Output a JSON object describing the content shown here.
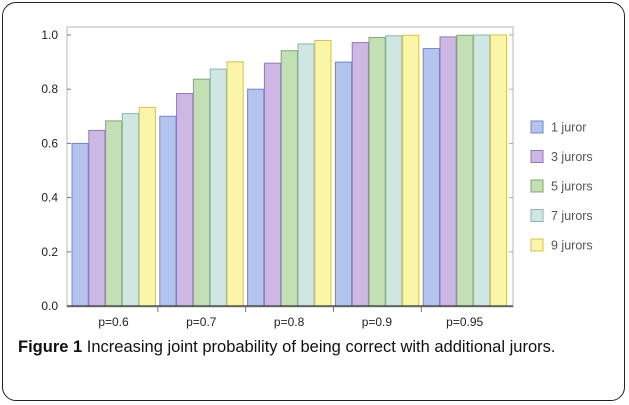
{
  "chart_data": {
    "type": "bar",
    "categories": [
      "p=0.6",
      "p=0.7",
      "p=0.8",
      "p=0.9",
      "p=0.95"
    ],
    "series": [
      {
        "name": "1 juror",
        "values": [
          0.6,
          0.7,
          0.8,
          0.9,
          0.95
        ],
        "color": "#b3c5ef",
        "stroke": "#7088c6"
      },
      {
        "name": "3 jurors",
        "values": [
          0.648,
          0.784,
          0.896,
          0.972,
          0.993
        ],
        "color": "#cdb8e4",
        "stroke": "#9277b8"
      },
      {
        "name": "5 jurors",
        "values": [
          0.683,
          0.837,
          0.942,
          0.991,
          0.999
        ],
        "color": "#c3e0b4",
        "stroke": "#7faa6c"
      },
      {
        "name": "7 jurors",
        "values": [
          0.71,
          0.874,
          0.967,
          0.997,
          1.0
        ],
        "color": "#cfe6e2",
        "stroke": "#8ab6ad"
      },
      {
        "name": "9 jurors",
        "values": [
          0.733,
          0.901,
          0.98,
          0.999,
          1.0
        ],
        "color": "#fbf6a7",
        "stroke": "#cfc25a"
      }
    ],
    "yticks": [
      "0.0",
      "0.2",
      "0.4",
      "0.6",
      "0.8",
      "1.0"
    ],
    "ylim": [
      0,
      1.0
    ],
    "grid": false,
    "legend": "right"
  },
  "caption": {
    "label": "Figure 1",
    "text": "Increasing joint probability of being correct with additional jurors."
  }
}
